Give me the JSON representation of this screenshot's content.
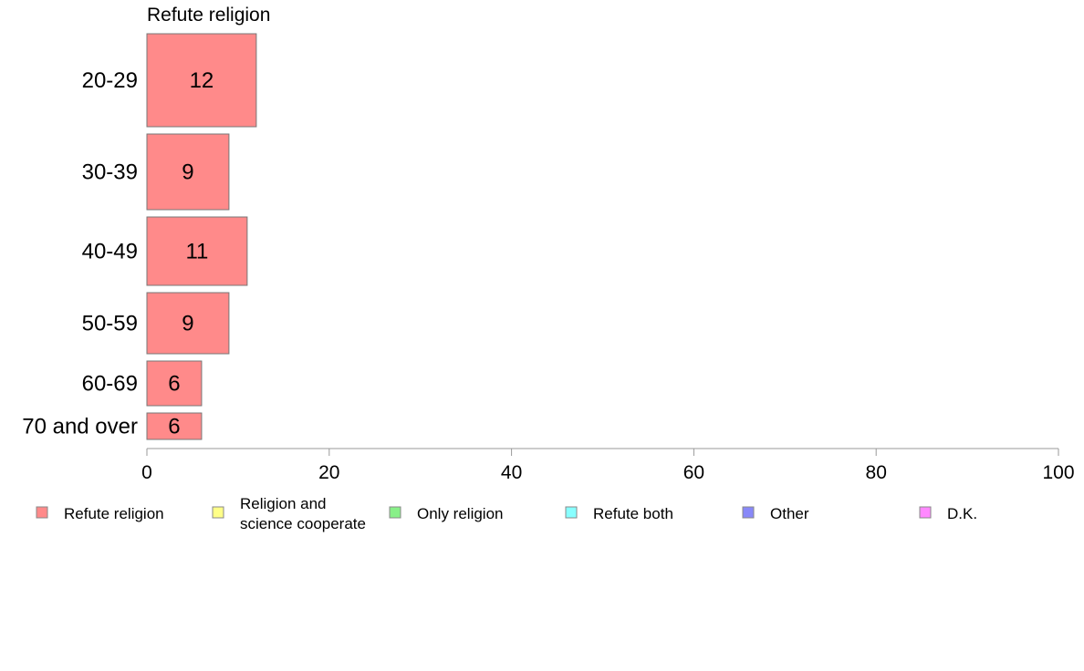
{
  "chart_data": {
    "type": "bar",
    "orientation": "horizontal",
    "panel_title": "Refute religion",
    "categories": [
      "20-29",
      "30-39",
      "40-49",
      "50-59",
      "60-69",
      "70 and over"
    ],
    "series": [
      {
        "name": "Refute religion",
        "values": [
          12,
          9,
          11,
          9,
          6,
          6
        ],
        "color": "#ff8a8a"
      }
    ],
    "data_labels": [
      "12",
      "9",
      "11",
      "9",
      "6",
      "6"
    ],
    "xlim": [
      0,
      100
    ],
    "xticks": [
      0,
      20,
      40,
      60,
      80,
      100
    ],
    "xtick_labels": [
      "0",
      "20",
      "40",
      "60",
      "80",
      "100"
    ],
    "grid": false,
    "legend_position": "bottom",
    "legend": [
      {
        "label": "Refute religion",
        "color": "#ff8a8a"
      },
      {
        "label": "Religion and science cooperate",
        "lines": [
          "Religion and",
          "science cooperate"
        ],
        "color": "#ffff88"
      },
      {
        "label": "Only religion",
        "color": "#88f088"
      },
      {
        "label": "Refute both",
        "color": "#88ffff"
      },
      {
        "label": "Other",
        "color": "#8888f8"
      },
      {
        "label": "D.K.",
        "color": "#ff88ff"
      }
    ]
  }
}
